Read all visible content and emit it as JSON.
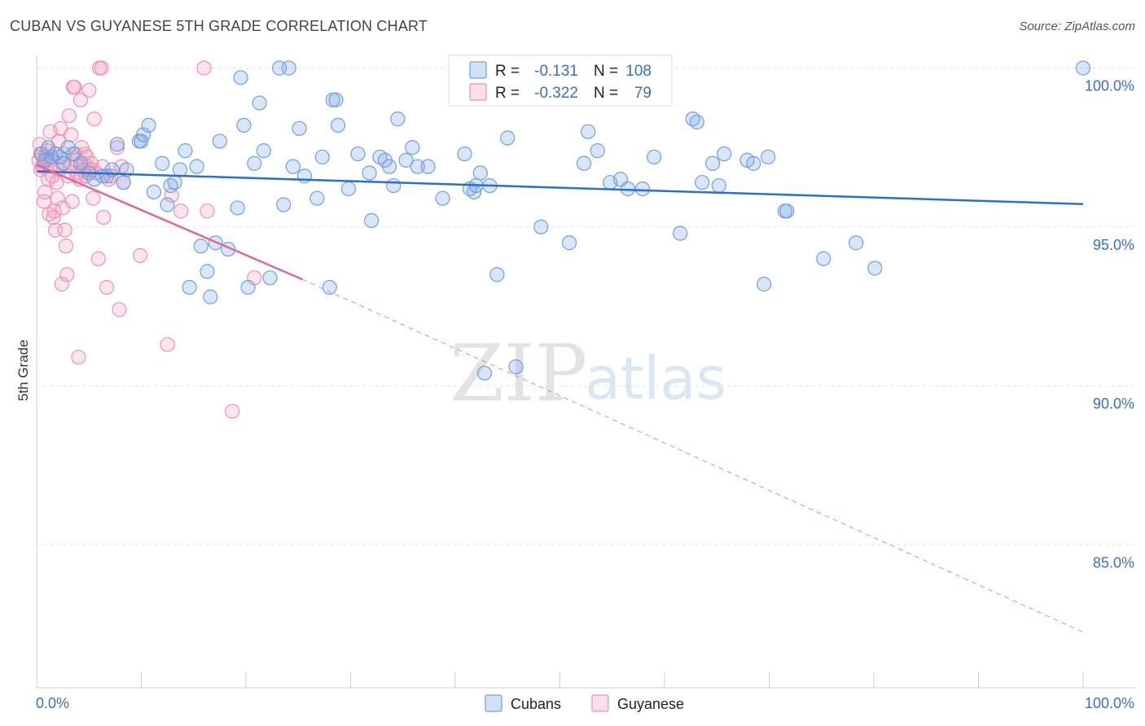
{
  "title": "CUBAN VS GUYANESE 5TH GRADE CORRELATION CHART",
  "source": "Source: ZipAtlas.com",
  "watermark": {
    "zip": "ZIP",
    "atlas": "atlas"
  },
  "colors": {
    "cubans": "#6f9fe0",
    "cubans_fill": "rgba(120,165,230,0.28)",
    "cubans_line": "#2a6fc9",
    "guyanese": "#f08fb0",
    "guyanese_fill": "rgba(245,160,190,0.28)",
    "guyanese_line": "#e0679a",
    "tick_text": "#3a6fc4"
  },
  "legend_box": {
    "rows": [
      {
        "r_label": "R =",
        "r_value": "-0.131",
        "n_label": "N =",
        "n_value": "108"
      },
      {
        "r_label": "R =",
        "r_value": "-0.322",
        "n_label": "N =",
        "n_value": "79"
      }
    ]
  },
  "bottom_legend": [
    "Cubans",
    "Guyanese"
  ],
  "chart_data": {
    "type": "scatter",
    "title": "CUBAN VS GUYANESE 5TH GRADE CORRELATION CHART",
    "xlabel": "",
    "ylabel": "5th Grade",
    "xlim": [
      0,
      100
    ],
    "ylim": [
      80.5,
      100.4
    ],
    "x_tick_labels": [
      "0.0%",
      "100.0%"
    ],
    "y_ticks": [
      85,
      90,
      95,
      100
    ],
    "y_tick_labels": [
      "85.0%",
      "90.0%",
      "95.0%",
      "100.0%"
    ],
    "grid": true,
    "series": [
      {
        "name": "Cubans",
        "r": -0.131,
        "n": 108,
        "trend": {
          "x0": 0,
          "y0": 96.75,
          "x1": 100,
          "y1": 95.72
        },
        "points": [
          [
            0.4,
            97.3
          ],
          [
            0.8,
            97.1
          ],
          [
            1.1,
            97.5
          ],
          [
            1.4,
            97.2
          ],
          [
            1.8,
            97.3
          ],
          [
            2.2,
            97.2
          ],
          [
            2.5,
            97.0
          ],
          [
            3.0,
            97.5
          ],
          [
            3.5,
            97.3
          ],
          [
            4.2,
            97.0
          ],
          [
            5.0,
            96.7
          ],
          [
            5.5,
            96.5
          ],
          [
            6.3,
            96.6
          ],
          [
            6.7,
            96.6
          ],
          [
            7.2,
            96.8
          ],
          [
            7.7,
            97.6
          ],
          [
            8.3,
            96.4
          ],
          [
            8.6,
            96.8
          ],
          [
            9.8,
            97.7
          ],
          [
            10.0,
            97.7
          ],
          [
            10.2,
            97.9
          ],
          [
            10.7,
            98.2
          ],
          [
            11.2,
            96.1
          ],
          [
            12.0,
            97.0
          ],
          [
            12.5,
            95.7
          ],
          [
            12.8,
            96.3
          ],
          [
            13.2,
            96.4
          ],
          [
            13.7,
            96.8
          ],
          [
            14.2,
            97.4
          ],
          [
            14.6,
            93.1
          ],
          [
            15.3,
            96.9
          ],
          [
            15.7,
            94.4
          ],
          [
            16.3,
            93.6
          ],
          [
            16.6,
            92.8
          ],
          [
            17.1,
            94.5
          ],
          [
            17.5,
            97.7
          ],
          [
            18.3,
            94.3
          ],
          [
            19.2,
            95.6
          ],
          [
            19.5,
            99.7
          ],
          [
            19.8,
            98.2
          ],
          [
            20.2,
            93.1
          ],
          [
            20.8,
            97.0
          ],
          [
            21.3,
            98.9
          ],
          [
            21.7,
            97.4
          ],
          [
            22.3,
            93.4
          ],
          [
            23.2,
            100.0
          ],
          [
            23.6,
            95.7
          ],
          [
            24.1,
            100.0
          ],
          [
            24.5,
            96.9
          ],
          [
            25.1,
            98.1
          ],
          [
            25.6,
            96.6
          ],
          [
            26.8,
            95.9
          ],
          [
            27.3,
            97.2
          ],
          [
            28.0,
            93.1
          ],
          [
            28.3,
            99.0
          ],
          [
            28.6,
            99.0
          ],
          [
            28.8,
            98.2
          ],
          [
            29.8,
            96.2
          ],
          [
            30.7,
            97.3
          ],
          [
            31.8,
            96.7
          ],
          [
            32.0,
            95.2
          ],
          [
            32.8,
            97.2
          ],
          [
            33.3,
            97.1
          ],
          [
            33.7,
            96.9
          ],
          [
            34.1,
            96.3
          ],
          [
            34.5,
            98.4
          ],
          [
            35.3,
            97.1
          ],
          [
            35.9,
            97.5
          ],
          [
            36.4,
            96.9
          ],
          [
            37.4,
            96.9
          ],
          [
            38.8,
            95.9
          ],
          [
            40.9,
            97.3
          ],
          [
            41.4,
            96.2
          ],
          [
            41.8,
            96.1
          ],
          [
            42.0,
            96.3
          ],
          [
            42.4,
            96.7
          ],
          [
            42.8,
            90.4
          ],
          [
            43.3,
            96.3
          ],
          [
            44.0,
            93.5
          ],
          [
            45.0,
            97.8
          ],
          [
            48.2,
            95.0
          ],
          [
            50.9,
            94.5
          ],
          [
            52.3,
            97.0
          ],
          [
            52.7,
            98.0
          ],
          [
            53.6,
            97.4
          ],
          [
            54.8,
            96.4
          ],
          [
            55.8,
            96.5
          ],
          [
            56.5,
            96.2
          ],
          [
            57.9,
            96.2
          ],
          [
            59.0,
            97.2
          ],
          [
            61.5,
            94.8
          ],
          [
            62.7,
            98.4
          ],
          [
            63.1,
            98.3
          ],
          [
            63.6,
            96.4
          ],
          [
            64.6,
            97.0
          ],
          [
            65.2,
            96.3
          ],
          [
            65.7,
            97.3
          ],
          [
            67.9,
            97.1
          ],
          [
            68.5,
            97.0
          ],
          [
            69.5,
            93.2
          ],
          [
            69.9,
            97.2
          ],
          [
            71.5,
            95.5
          ],
          [
            71.7,
            95.5
          ],
          [
            75.2,
            94.0
          ],
          [
            78.3,
            94.5
          ],
          [
            80.1,
            93.7
          ],
          [
            100.0,
            100.0
          ],
          [
            45.8,
            90.6
          ]
        ]
      },
      {
        "name": "Guyanese",
        "r": -0.322,
        "n": 79,
        "trend": {
          "x0": 0,
          "y0": 96.95,
          "x1": 25.4,
          "y1": 93.35
        },
        "trend_extension": {
          "x0": 25.4,
          "y0": 93.35,
          "x1": 100,
          "y1": 82.25
        },
        "points": [
          [
            0.2,
            97.1
          ],
          [
            0.3,
            97.6
          ],
          [
            0.4,
            96.8
          ],
          [
            0.5,
            97.3
          ],
          [
            0.6,
            97.0
          ],
          [
            0.7,
            95.8
          ],
          [
            0.8,
            96.1
          ],
          [
            0.9,
            97.2
          ],
          [
            1.0,
            97.4
          ],
          [
            1.1,
            96.5
          ],
          [
            1.2,
            95.4
          ],
          [
            1.3,
            98.0
          ],
          [
            1.4,
            97.1
          ],
          [
            1.5,
            96.6
          ],
          [
            1.6,
            95.3
          ],
          [
            1.7,
            95.5
          ],
          [
            1.8,
            94.9
          ],
          [
            1.9,
            96.4
          ],
          [
            2.0,
            95.9
          ],
          [
            2.1,
            97.7
          ],
          [
            2.2,
            96.8
          ],
          [
            2.3,
            98.1
          ],
          [
            2.4,
            93.2
          ],
          [
            2.5,
            95.6
          ],
          [
            2.6,
            97.3
          ],
          [
            2.7,
            94.9
          ],
          [
            2.8,
            94.4
          ],
          [
            2.9,
            93.5
          ],
          [
            3.0,
            96.6
          ],
          [
            3.1,
            98.5
          ],
          [
            3.2,
            96.9
          ],
          [
            3.3,
            97.9
          ],
          [
            3.4,
            95.8
          ],
          [
            3.5,
            99.4
          ],
          [
            3.6,
            99.4
          ],
          [
            3.7,
            97.3
          ],
          [
            3.8,
            97.1
          ],
          [
            3.9,
            96.7
          ],
          [
            4.0,
            90.9
          ],
          [
            4.1,
            96.5
          ],
          [
            4.2,
            99.0
          ],
          [
            4.3,
            97.5
          ],
          [
            4.4,
            96.8
          ],
          [
            4.5,
            97.0
          ],
          [
            4.6,
            97.3
          ],
          [
            4.7,
            96.6
          ],
          [
            4.8,
            97.2
          ],
          [
            5.0,
            99.3
          ],
          [
            5.2,
            97.0
          ],
          [
            5.3,
            96.8
          ],
          [
            5.4,
            95.9
          ],
          [
            5.5,
            98.4
          ],
          [
            5.7,
            96.7
          ],
          [
            5.9,
            94.0
          ],
          [
            6.0,
            100.0
          ],
          [
            6.2,
            100.0
          ],
          [
            6.3,
            96.9
          ],
          [
            6.4,
            95.3
          ],
          [
            6.7,
            93.1
          ],
          [
            6.9,
            96.5
          ],
          [
            7.1,
            96.6
          ],
          [
            7.7,
            97.5
          ],
          [
            7.9,
            92.4
          ],
          [
            8.1,
            96.9
          ],
          [
            8.3,
            96.4
          ],
          [
            9.9,
            94.1
          ],
          [
            12.5,
            91.3
          ],
          [
            12.9,
            96.0
          ],
          [
            13.8,
            95.5
          ],
          [
            16.0,
            100.0
          ],
          [
            16.3,
            95.5
          ],
          [
            18.7,
            89.2
          ],
          [
            20.8,
            93.4
          ],
          [
            1.05,
            97.1
          ],
          [
            0.55,
            96.9
          ],
          [
            2.65,
            97.0
          ],
          [
            3.85,
            96.6
          ],
          [
            1.35,
            96.9
          ],
          [
            4.95,
            96.8
          ]
        ]
      }
    ]
  }
}
